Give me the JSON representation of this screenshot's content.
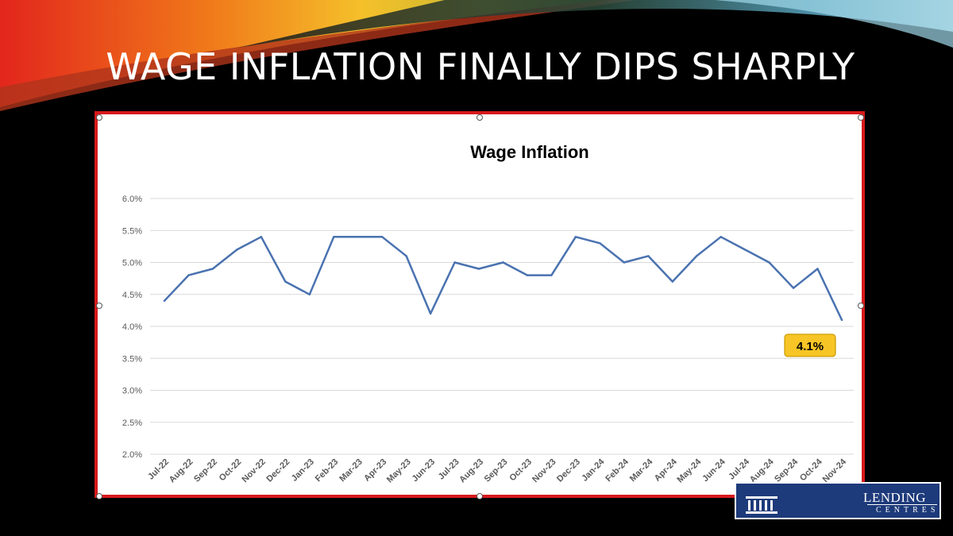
{
  "slide": {
    "title": "WAGE INFLATION FINALLY DIPS SHARPLY"
  },
  "logo": {
    "name": "LENDING",
    "tagline": "CENTRES"
  },
  "colors": {
    "series": "#4a72b0",
    "callout_fill": "#f7c526",
    "callout_border": "#c79a00",
    "frame_border": "#d7191c",
    "background": "#000000"
  },
  "chart_data": {
    "type": "line",
    "title": "Wage Inflation",
    "xlabel": "",
    "ylabel": "",
    "ylim": [
      0.02,
      0.06
    ],
    "y_ticks": [
      0.02,
      0.025,
      0.03,
      0.035,
      0.04,
      0.045,
      0.05,
      0.055,
      0.06
    ],
    "y_tick_labels": [
      "2.0%",
      "2.5%",
      "3.0%",
      "3.5%",
      "4.0%",
      "4.5%",
      "5.0%",
      "5.5%",
      "6.0%"
    ],
    "grid": true,
    "legend": "none",
    "categories": [
      "Jul-22",
      "Aug-22",
      "Sep-22",
      "Oct-22",
      "Nov-22",
      "Dec-22",
      "Jan-23",
      "Feb-23",
      "Mar-23",
      "Apr-23",
      "May-23",
      "Jun-23",
      "Jul-23",
      "Aug-23",
      "Sep-23",
      "Oct-23",
      "Nov-23",
      "Dec-23",
      "Jan-24",
      "Feb-24",
      "Mar-24",
      "Apr-24",
      "May-24",
      "Jun-24",
      "Jul-24",
      "Aug-24",
      "Sep-24",
      "Oct-24",
      "Nov-24"
    ],
    "values": [
      0.044,
      0.048,
      0.049,
      0.052,
      0.054,
      0.047,
      0.045,
      0.054,
      0.054,
      0.054,
      0.051,
      0.042,
      0.05,
      0.049,
      0.05,
      0.048,
      0.048,
      0.054,
      0.053,
      0.05,
      0.051,
      0.047,
      0.051,
      0.054,
      0.052,
      0.05,
      0.046,
      0.049,
      0.041
    ],
    "annotation": {
      "category": "Nov-24",
      "label": "4.1%"
    }
  }
}
